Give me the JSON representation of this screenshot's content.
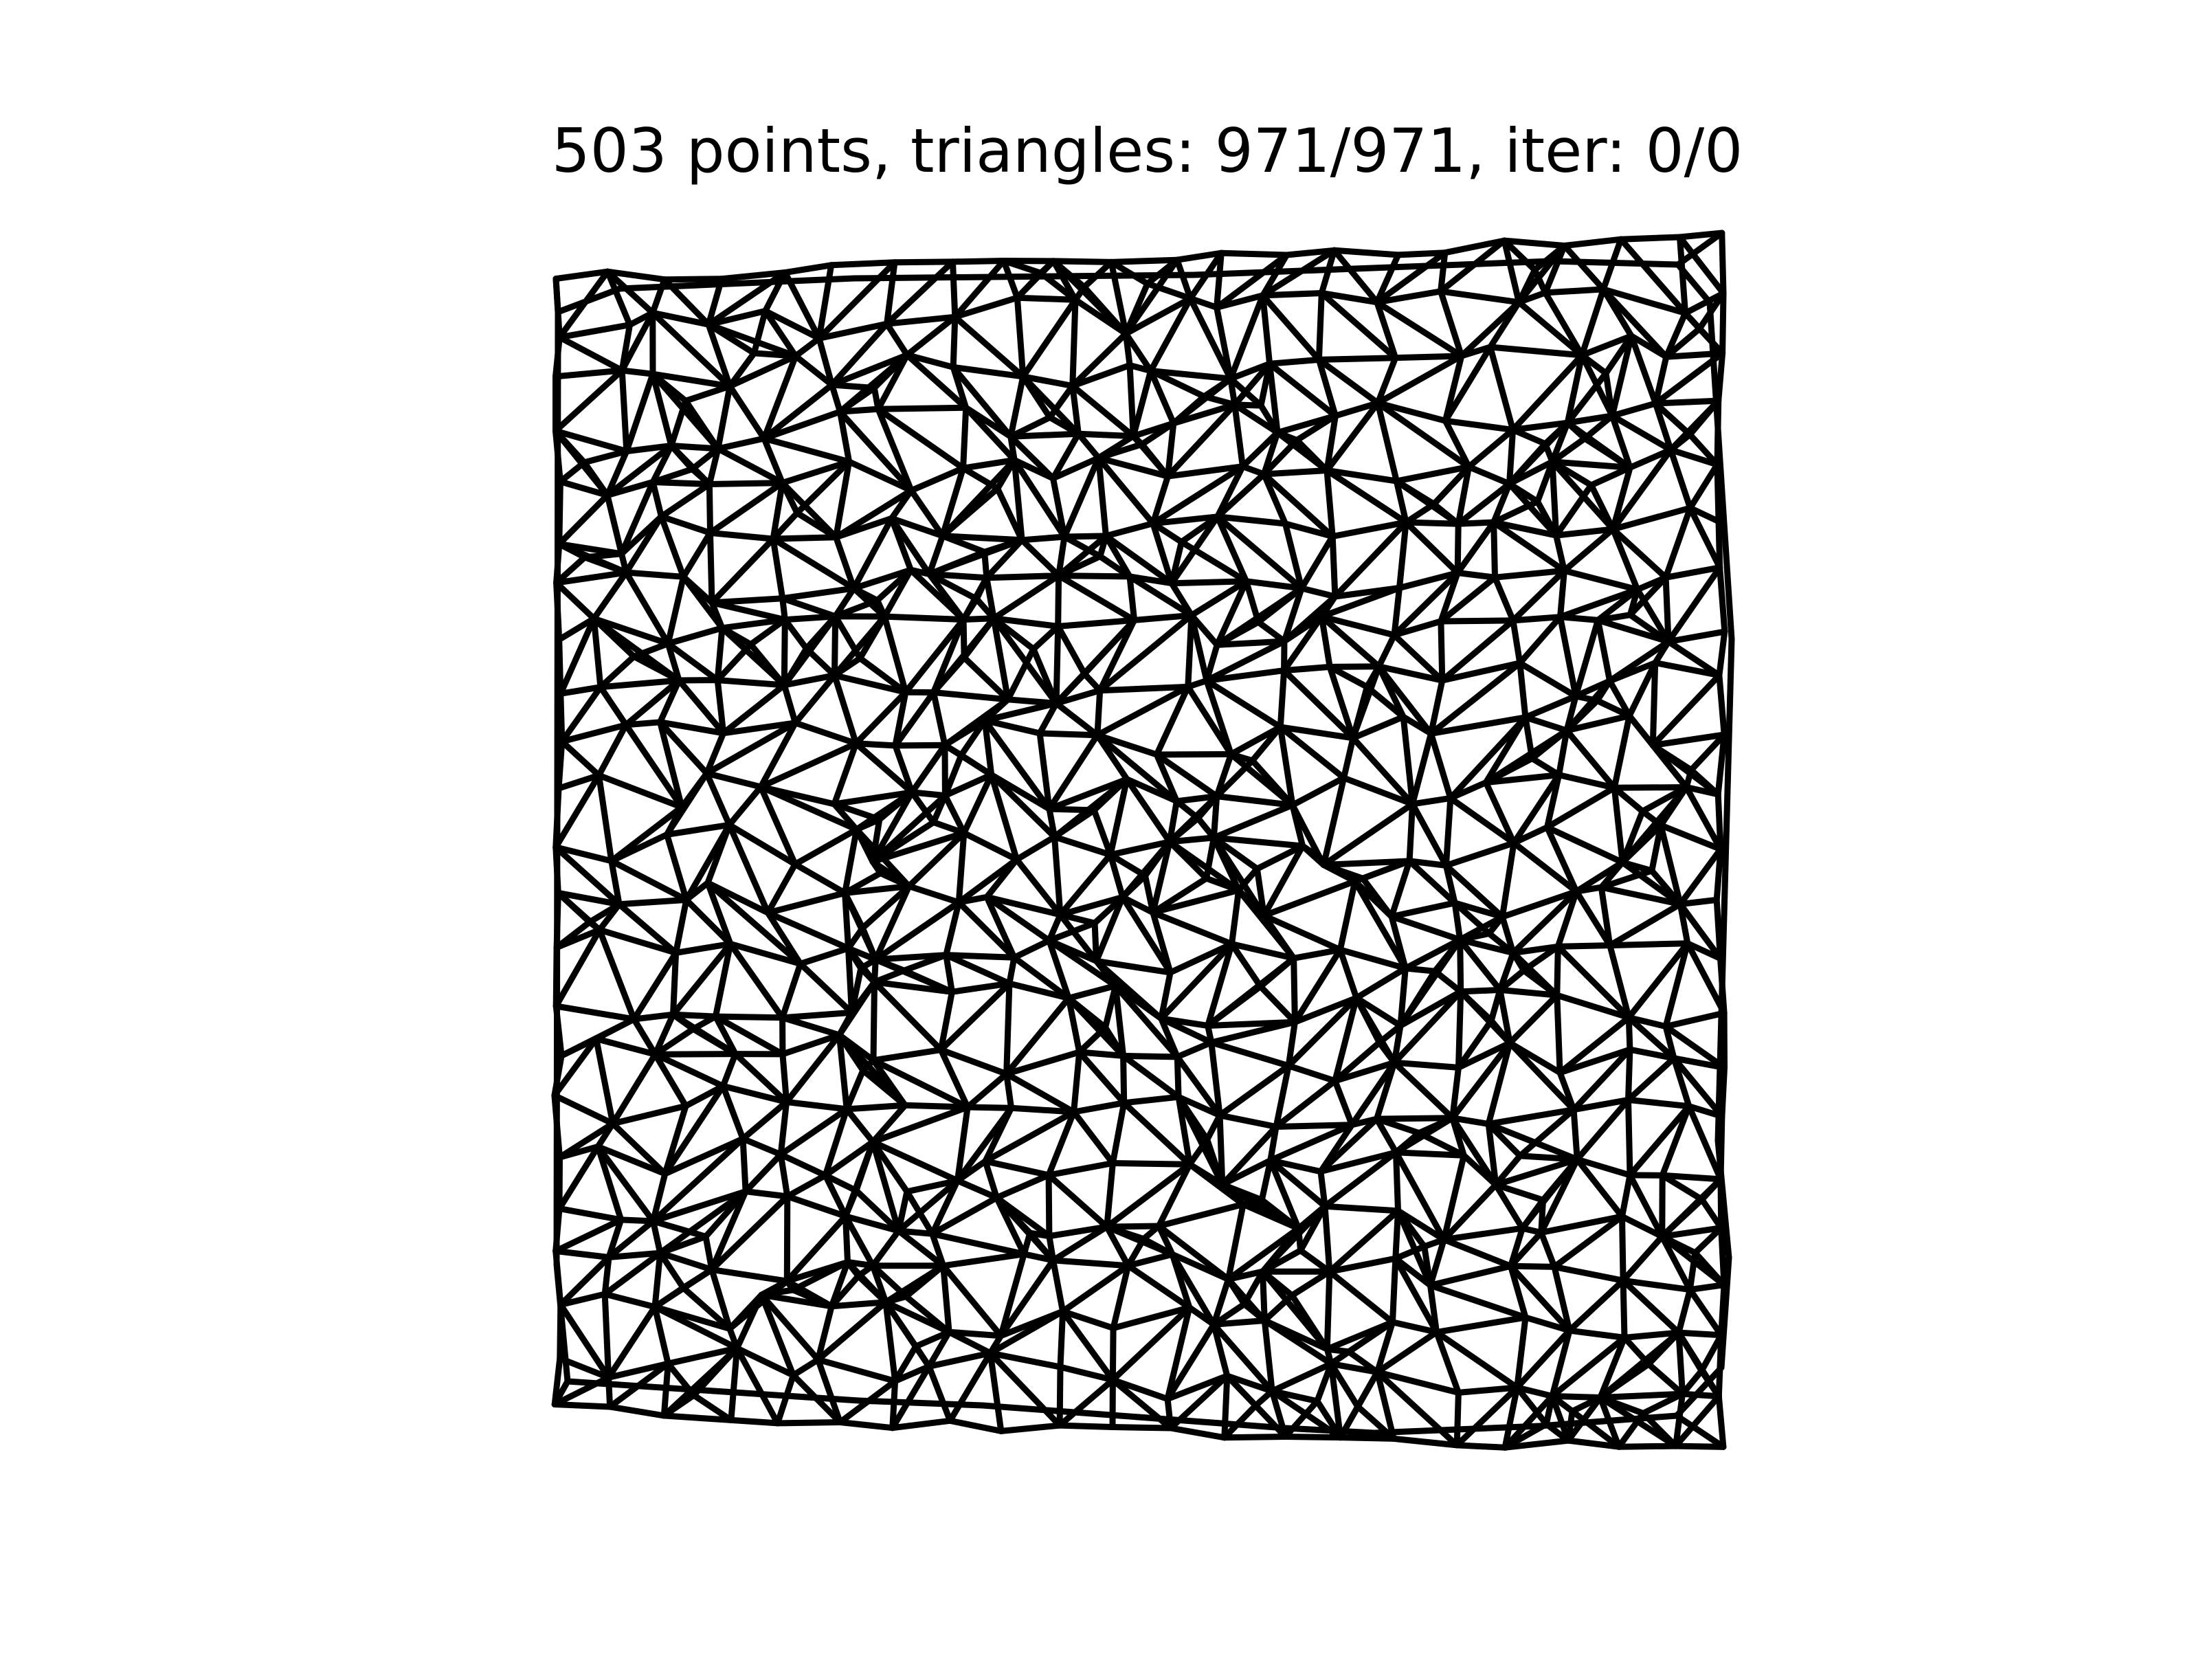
{
  "title": "503 points, triangles: 971/971, iter: 0/0",
  "stats": {
    "points": 503,
    "triangles_shown": 971,
    "triangles_total": 971,
    "iter_current": 0,
    "iter_total": 0
  },
  "colors": {
    "background": "#ffffff",
    "edge": "#000000",
    "text": "#000000"
  }
}
